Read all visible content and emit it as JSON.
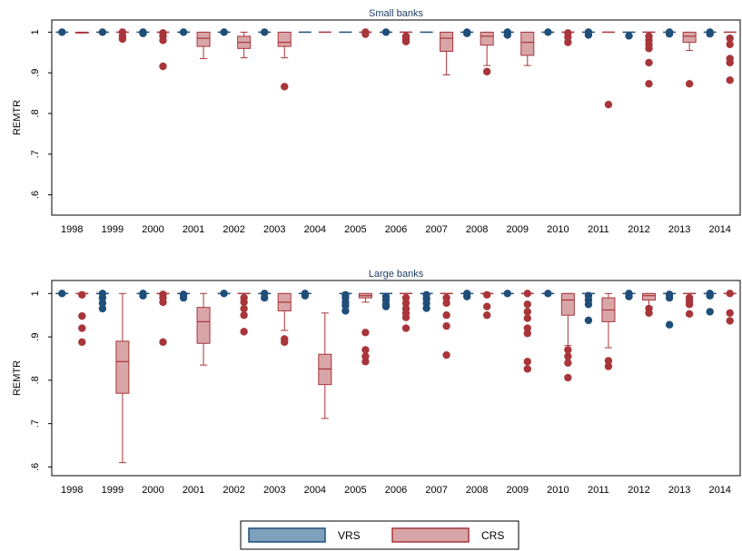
{
  "colors": {
    "vrs": "#1f4e79",
    "vrs_fill": "#7fa0bd",
    "crs": "#a8353a",
    "crs_fill": "#d9a6a8",
    "frame": "#000000"
  },
  "legend": {
    "vrs_label": "VRS",
    "crs_label": "CRS"
  },
  "chart_data": [
    {
      "type": "box",
      "title": "Small banks",
      "ylabel": "REMTR",
      "ylim": [
        0.55,
        1.03
      ],
      "yticks": [
        "1",
        ".9",
        ".8",
        ".7",
        ".6"
      ],
      "ytick_values": [
        1.0,
        0.9,
        0.8,
        0.7,
        0.6
      ],
      "categories": [
        "1998",
        "1999",
        "2000",
        "2001",
        "2002",
        "2003",
        "2004",
        "2005",
        "2006",
        "2007",
        "2008",
        "2009",
        "2010",
        "2011",
        "2012",
        "2013",
        "2014"
      ],
      "series": [
        {
          "name": "VRS",
          "boxes": [
            {
              "q1": 1,
              "median": 1,
              "q3": 1,
              "lo": 1,
              "hi": 1,
              "outliers": [
                1.0
              ]
            },
            {
              "q1": 1,
              "median": 1,
              "q3": 1,
              "lo": 1,
              "hi": 1,
              "outliers": [
                1.0
              ]
            },
            {
              "q1": 1,
              "median": 1,
              "q3": 1,
              "lo": 1,
              "hi": 1,
              "outliers": [
                1.0,
                0.997
              ]
            },
            {
              "q1": 1,
              "median": 1,
              "q3": 1,
              "lo": 1,
              "hi": 1,
              "outliers": [
                1.0
              ]
            },
            {
              "q1": 1,
              "median": 1,
              "q3": 1,
              "lo": 1,
              "hi": 1,
              "outliers": [
                1.0
              ]
            },
            {
              "q1": 1,
              "median": 1,
              "q3": 1,
              "lo": 1,
              "hi": 1,
              "outliers": [
                1.0
              ]
            },
            {
              "q1": 1,
              "median": 1,
              "q3": 1,
              "lo": 1,
              "hi": 1,
              "outliers": []
            },
            {
              "q1": 1,
              "median": 1,
              "q3": 1,
              "lo": 1,
              "hi": 1,
              "outliers": []
            },
            {
              "q1": 1,
              "median": 1,
              "q3": 1,
              "lo": 1,
              "hi": 1,
              "outliers": [
                1.0
              ]
            },
            {
              "q1": 1,
              "median": 1,
              "q3": 1,
              "lo": 1,
              "hi": 1,
              "outliers": []
            },
            {
              "q1": 1,
              "median": 1,
              "q3": 1,
              "lo": 1,
              "hi": 1,
              "outliers": [
                1.0,
                0.997
              ]
            },
            {
              "q1": 1,
              "median": 1,
              "q3": 1,
              "lo": 1,
              "hi": 1,
              "outliers": [
                1.0,
                0.993
              ]
            },
            {
              "q1": 1,
              "median": 1,
              "q3": 1,
              "lo": 1,
              "hi": 1,
              "outliers": [
                1.0
              ]
            },
            {
              "q1": 1,
              "median": 1,
              "q3": 1,
              "lo": 1,
              "hi": 1,
              "outliers": [
                1.0,
                0.993
              ]
            },
            {
              "q1": 1,
              "median": 1,
              "q3": 1,
              "lo": 1,
              "hi": 1,
              "outliers": [
                0.991
              ]
            },
            {
              "q1": 1,
              "median": 1,
              "q3": 1,
              "lo": 1,
              "hi": 1,
              "outliers": [
                1.0,
                0.996
              ]
            },
            {
              "q1": 1,
              "median": 1,
              "q3": 1,
              "lo": 1,
              "hi": 1,
              "outliers": [
                1.0,
                0.996
              ]
            }
          ]
        },
        {
          "name": "CRS",
          "boxes": [
            {
              "q1": 0.998,
              "median": 0.999,
              "q3": 1.0,
              "lo": 0.998,
              "hi": 1.0,
              "outliers": []
            },
            {
              "q1": 1,
              "median": 1,
              "q3": 1,
              "lo": 1,
              "hi": 1,
              "outliers": [
                1.0,
                0.99,
                0.983
              ]
            },
            {
              "q1": 1,
              "median": 1,
              "q3": 1,
              "lo": 1,
              "hi": 1,
              "outliers": [
                0.998,
                0.99,
                0.98,
                0.916
              ]
            },
            {
              "q1": 0.965,
              "median": 0.985,
              "q3": 1.0,
              "lo": 0.935,
              "hi": 1.0,
              "outliers": []
            },
            {
              "q1": 0.96,
              "median": 0.975,
              "q3": 0.99,
              "lo": 0.937,
              "hi": 1.0,
              "outliers": []
            },
            {
              "q1": 0.965,
              "median": 0.975,
              "q3": 1.0,
              "lo": 0.937,
              "hi": 1.0,
              "outliers": [
                0.866
              ]
            },
            {
              "q1": 1,
              "median": 1,
              "q3": 1,
              "lo": 1,
              "hi": 1,
              "outliers": []
            },
            {
              "q1": 1,
              "median": 1,
              "q3": 1,
              "lo": 1,
              "hi": 1,
              "outliers": [
                1.0,
                0.995
              ]
            },
            {
              "q1": 1,
              "median": 1,
              "q3": 1,
              "lo": 1,
              "hi": 1,
              "outliers": [
                0.99,
                0.983,
                0.977
              ]
            },
            {
              "q1": 0.953,
              "median": 0.985,
              "q3": 1.0,
              "lo": 0.895,
              "hi": 1.0,
              "outliers": []
            },
            {
              "q1": 0.968,
              "median": 0.99,
              "q3": 1.0,
              "lo": 0.918,
              "hi": 1.0,
              "outliers": [
                0.903
              ]
            },
            {
              "q1": 0.943,
              "median": 0.975,
              "q3": 1.0,
              "lo": 0.918,
              "hi": 1.0,
              "outliers": []
            },
            {
              "q1": 1,
              "median": 1,
              "q3": 1,
              "lo": 1,
              "hi": 1,
              "outliers": [
                0.998,
                0.988,
                0.975
              ]
            },
            {
              "q1": 1,
              "median": 1,
              "q3": 1,
              "lo": 1,
              "hi": 1,
              "outliers": [
                0.822
              ]
            },
            {
              "q1": 1,
              "median": 1,
              "q3": 1,
              "lo": 1,
              "hi": 1,
              "outliers": [
                0.99,
                0.98,
                0.97,
                0.96,
                0.925,
                0.873
              ]
            },
            {
              "q1": 0.975,
              "median": 0.99,
              "q3": 1.0,
              "lo": 0.955,
              "hi": 1.0,
              "outliers": [
                0.873
              ]
            },
            {
              "q1": 1,
              "median": 1,
              "q3": 1,
              "lo": 1,
              "hi": 1,
              "outliers": [
                0.985,
                0.97,
                0.935,
                0.925,
                0.882
              ]
            }
          ]
        }
      ]
    },
    {
      "type": "box",
      "title": "Large banks",
      "ylabel": "REMTR",
      "ylim": [
        0.58,
        1.03
      ],
      "yticks": [
        "1",
        ".9",
        ".8",
        ".7",
        ".6"
      ],
      "ytick_values": [
        1.0,
        0.9,
        0.8,
        0.7,
        0.6
      ],
      "categories": [
        "1998",
        "1999",
        "2000",
        "2001",
        "2002",
        "2003",
        "2004",
        "2005",
        "2006",
        "2007",
        "2008",
        "2009",
        "2010",
        "2011",
        "2012",
        "2013",
        "2014"
      ],
      "series": [
        {
          "name": "VRS",
          "boxes": [
            {
              "q1": 1,
              "median": 1,
              "q3": 1,
              "lo": 1,
              "hi": 1,
              "outliers": [
                1.0
              ]
            },
            {
              "q1": 1,
              "median": 1,
              "q3": 1,
              "lo": 1,
              "hi": 1,
              "outliers": [
                1.0,
                0.99,
                0.978,
                0.965
              ]
            },
            {
              "q1": 1,
              "median": 1,
              "q3": 1,
              "lo": 1,
              "hi": 1,
              "outliers": [
                1.0,
                0.995
              ]
            },
            {
              "q1": 1,
              "median": 1,
              "q3": 1,
              "lo": 1,
              "hi": 1,
              "outliers": [
                0.998,
                0.99
              ]
            },
            {
              "q1": 1,
              "median": 1,
              "q3": 1,
              "lo": 1,
              "hi": 1,
              "outliers": [
                1.0
              ]
            },
            {
              "q1": 1,
              "median": 1,
              "q3": 1,
              "lo": 1,
              "hi": 1,
              "outliers": [
                1.0,
                0.99
              ]
            },
            {
              "q1": 1,
              "median": 1,
              "q3": 1,
              "lo": 1,
              "hi": 1,
              "outliers": [
                1.0,
                0.995
              ]
            },
            {
              "q1": 1,
              "median": 1,
              "q3": 1,
              "lo": 1,
              "hi": 1,
              "outliers": [
                0.997,
                0.99,
                0.98,
                0.972,
                0.96
              ]
            },
            {
              "q1": 1,
              "median": 1,
              "q3": 1,
              "lo": 1,
              "hi": 1,
              "outliers": [
                0.993,
                0.985,
                0.975,
                0.97
              ]
            },
            {
              "q1": 1,
              "median": 1,
              "q3": 1,
              "lo": 1,
              "hi": 1,
              "outliers": [
                0.997,
                0.988,
                0.978,
                0.966
              ]
            },
            {
              "q1": 1,
              "median": 1,
              "q3": 1,
              "lo": 1,
              "hi": 1,
              "outliers": [
                1.0,
                0.993
              ]
            },
            {
              "q1": 1,
              "median": 1,
              "q3": 1,
              "lo": 1,
              "hi": 1,
              "outliers": [
                1.0
              ]
            },
            {
              "q1": 1,
              "median": 1,
              "q3": 1,
              "lo": 1,
              "hi": 1,
              "outliers": [
                1.0
              ]
            },
            {
              "q1": 1,
              "median": 1,
              "q3": 1,
              "lo": 1,
              "hi": 1,
              "outliers": [
                0.995,
                0.985,
                0.975,
                0.938
              ]
            },
            {
              "q1": 1,
              "median": 1,
              "q3": 1,
              "lo": 1,
              "hi": 1,
              "outliers": [
                1.0,
                0.993
              ]
            },
            {
              "q1": 1,
              "median": 1,
              "q3": 1,
              "lo": 1,
              "hi": 1,
              "outliers": [
                0.998,
                0.99,
                0.928
              ]
            },
            {
              "q1": 1,
              "median": 1,
              "q3": 1,
              "lo": 1,
              "hi": 1,
              "outliers": [
                1.0,
                0.995,
                0.958
              ]
            }
          ]
        },
        {
          "name": "CRS",
          "boxes": [
            {
              "q1": 1,
              "median": 1,
              "q3": 1,
              "lo": 1,
              "hi": 1,
              "outliers": [
                0.997,
                0.948,
                0.92,
                0.888
              ]
            },
            {
              "q1": 0.77,
              "median": 0.843,
              "q3": 0.89,
              "lo": 0.61,
              "hi": 1.0,
              "outliers": []
            },
            {
              "q1": 1,
              "median": 1,
              "q3": 1,
              "lo": 1,
              "hi": 1,
              "outliers": [
                0.998,
                0.99,
                0.98,
                0.888
              ]
            },
            {
              "q1": 0.885,
              "median": 0.935,
              "q3": 0.968,
              "lo": 0.835,
              "hi": 1.0,
              "outliers": []
            },
            {
              "q1": 1,
              "median": 1,
              "q3": 1,
              "lo": 1,
              "hi": 1,
              "outliers": [
                0.99,
                0.98,
                0.965,
                0.95,
                0.912
              ]
            },
            {
              "q1": 0.96,
              "median": 0.98,
              "q3": 1.0,
              "lo": 0.915,
              "hi": 1.0,
              "outliers": [
                0.895,
                0.888
              ]
            },
            {
              "q1": 0.79,
              "median": 0.826,
              "q3": 0.86,
              "lo": 0.712,
              "hi": 0.955,
              "outliers": []
            },
            {
              "q1": 0.99,
              "median": 0.995,
              "q3": 1.0,
              "lo": 0.98,
              "hi": 1.0,
              "outliers": [
                0.91,
                0.87,
                0.855,
                0.843
              ]
            },
            {
              "q1": 1,
              "median": 1,
              "q3": 1,
              "lo": 1,
              "hi": 1,
              "outliers": [
                0.99,
                0.978,
                0.965,
                0.955,
                0.945,
                0.92
              ]
            },
            {
              "q1": 1,
              "median": 1,
              "q3": 1,
              "lo": 1,
              "hi": 1,
              "outliers": [
                0.99,
                0.978,
                0.95,
                0.925,
                0.858
              ]
            },
            {
              "q1": 1,
              "median": 1,
              "q3": 1,
              "lo": 1,
              "hi": 1,
              "outliers": [
                0.997,
                0.97,
                0.95
              ]
            },
            {
              "q1": 1,
              "median": 1,
              "q3": 1,
              "lo": 1,
              "hi": 1,
              "outliers": [
                1.0,
                0.975,
                0.958,
                0.943,
                0.92,
                0.908,
                0.843,
                0.826
              ]
            },
            {
              "q1": 0.95,
              "median": 0.985,
              "q3": 1.0,
              "lo": 0.88,
              "hi": 1.0,
              "outliers": [
                0.87,
                0.855,
                0.84,
                0.806
              ]
            },
            {
              "q1": 0.935,
              "median": 0.962,
              "q3": 0.99,
              "lo": 0.875,
              "hi": 1.0,
              "outliers": [
                0.845,
                0.832
              ]
            },
            {
              "q1": 0.985,
              "median": 0.995,
              "q3": 1.0,
              "lo": 0.97,
              "hi": 1.0,
              "outliers": [
                0.965,
                0.955
              ]
            },
            {
              "q1": 1,
              "median": 1,
              "q3": 1,
              "lo": 1,
              "hi": 1,
              "outliers": [
                0.99,
                0.982,
                0.975,
                0.953
              ]
            },
            {
              "q1": 1,
              "median": 1,
              "q3": 1,
              "lo": 1,
              "hi": 1,
              "outliers": [
                1.0,
                0.955,
                0.937
              ]
            }
          ]
        }
      ]
    }
  ]
}
